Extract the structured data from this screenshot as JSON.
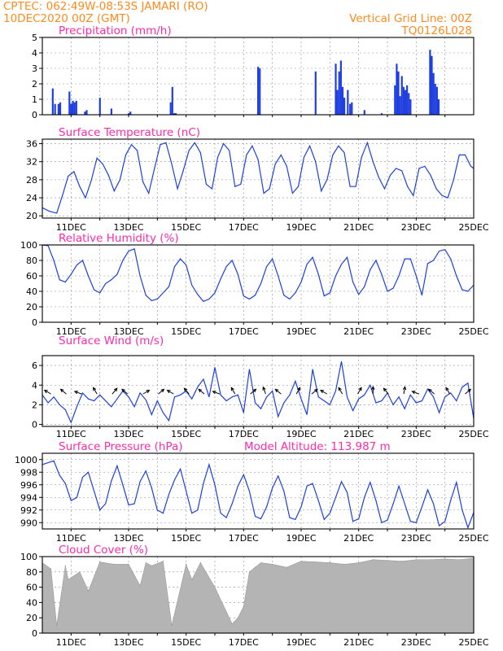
{
  "header": {
    "line1_left": "CPTEC:   062:49W-08:53S   JAMARI (RO)",
    "line2_left": "10DEC2020 00Z (GMT)",
    "line1_right": "Vertical Grid Line: 00Z",
    "line2_right": "TQ0126L028"
  },
  "x_tick_labels": [
    "11DEC",
    "13DEC",
    "15DEC",
    "17DEC",
    "19DEC",
    "21DEC",
    "23DEC",
    "25DEC"
  ],
  "colors": {
    "header": "#ff8a1e",
    "panel_title": "#ff2aa9",
    "series": "#1f3fe0",
    "cloud": "#b4b4b4"
  },
  "chart_data": [
    {
      "id": "precip",
      "type": "bar",
      "title": "Precipitation (mm/h)",
      "x_unit": "days since 10DEC2020 00Z",
      "ylim": [
        0,
        5
      ],
      "yticks": [
        0,
        1,
        2,
        3,
        4,
        5
      ],
      "x": [
        0.36,
        0.44,
        0.56,
        0.62,
        0.94,
        1.0,
        1.06,
        1.12,
        1.18,
        1.48,
        1.54,
        2.0,
        2.4,
        3.0,
        3.06,
        4.46,
        4.52,
        4.58,
        4.64,
        7.5,
        7.56,
        9.5,
        10.2,
        10.26,
        10.32,
        10.38,
        10.44,
        10.5,
        10.62,
        10.7,
        10.76,
        11.2,
        11.8,
        12.26,
        12.32,
        12.38,
        12.44,
        12.5,
        12.56,
        12.62,
        12.68,
        12.74,
        12.8,
        13.48,
        13.54,
        13.6,
        13.66,
        13.72,
        13.78
      ],
      "values": [
        1.7,
        0.7,
        0.7,
        0.8,
        1.5,
        0.7,
        0.9,
        0.8,
        0.9,
        0.2,
        0.3,
        1.1,
        0.4,
        0.1,
        0.2,
        0.8,
        1.8,
        0.1,
        0.1,
        3.1,
        3.0,
        2.8,
        3.3,
        1.6,
        2.8,
        3.5,
        1.8,
        1.1,
        1.6,
        0.7,
        0.8,
        0.3,
        0.1,
        1.9,
        3.3,
        2.8,
        1.2,
        2.5,
        1.8,
        1.6,
        1.9,
        1.4,
        1.0,
        4.2,
        3.8,
        2.7,
        2.0,
        1.8,
        1.0
      ]
    },
    {
      "id": "temp",
      "type": "line",
      "title": "Surface Temperature (nC)",
      "ylim": [
        19.5,
        37
      ],
      "yticks": [
        20,
        24,
        28,
        32,
        36
      ],
      "x": [
        0,
        0.25,
        0.5,
        0.7,
        0.9,
        1.1,
        1.3,
        1.5,
        1.7,
        1.9,
        2.1,
        2.3,
        2.5,
        2.7,
        2.9,
        3.1,
        3.3,
        3.5,
        3.7,
        3.9,
        4.1,
        4.3,
        4.5,
        4.7,
        4.9,
        5.1,
        5.3,
        5.5,
        5.7,
        5.9,
        6.1,
        6.3,
        6.5,
        6.7,
        6.9,
        7.1,
        7.3,
        7.5,
        7.7,
        7.9,
        8.1,
        8.3,
        8.5,
        8.7,
        8.9,
        9.1,
        9.3,
        9.5,
        9.7,
        9.9,
        10.1,
        10.3,
        10.5,
        10.7,
        10.9,
        11.1,
        11.3,
        11.5,
        11.7,
        11.9,
        12.1,
        12.3,
        12.5,
        12.7,
        12.9,
        13.1,
        13.3,
        13.5,
        13.7,
        13.9,
        14.1,
        14.3,
        14.5,
        14.7,
        14.9,
        15.0
      ],
      "values": [
        21.8,
        21.0,
        20.6,
        24.5,
        28.8,
        29.8,
        26.5,
        24.0,
        27.8,
        32.8,
        31.5,
        29.0,
        25.5,
        28.0,
        33.5,
        35.8,
        34.5,
        27.5,
        25.0,
        30.5,
        35.8,
        36.2,
        31.5,
        26.0,
        30.0,
        34.5,
        36.2,
        34.0,
        27.0,
        26.0,
        33.0,
        36.0,
        34.5,
        26.5,
        27.0,
        33.5,
        35.5,
        32.5,
        25.0,
        26.0,
        31.5,
        33.5,
        31.0,
        25.0,
        26.5,
        33.0,
        35.5,
        32.0,
        25.5,
        28.0,
        33.5,
        35.5,
        34.0,
        26.5,
        26.5,
        33.0,
        36.2,
        32.0,
        28.5,
        26.0,
        29.0,
        30.5,
        30.0,
        26.5,
        24.5,
        30.5,
        31.0,
        29.0,
        26.0,
        24.5,
        24.0,
        28.0,
        33.5,
        33.5,
        31.0,
        30.5
      ]
    },
    {
      "id": "rh",
      "type": "line",
      "title": "Relative Humidity (%)",
      "ylim": [
        0,
        100
      ],
      "yticks": [
        0,
        20,
        40,
        60,
        80,
        100
      ],
      "x": [
        0,
        0.2,
        0.4,
        0.6,
        0.8,
        1.0,
        1.2,
        1.4,
        1.6,
        1.8,
        2.0,
        2.2,
        2.4,
        2.6,
        2.8,
        3.0,
        3.2,
        3.4,
        3.6,
        3.8,
        4.0,
        4.2,
        4.4,
        4.6,
        4.8,
        5.0,
        5.2,
        5.4,
        5.6,
        5.8,
        6.0,
        6.2,
        6.4,
        6.6,
        6.8,
        7.0,
        7.2,
        7.4,
        7.6,
        7.8,
        8.0,
        8.2,
        8.4,
        8.6,
        8.8,
        9.0,
        9.2,
        9.4,
        9.6,
        9.8,
        10.0,
        10.2,
        10.4,
        10.6,
        10.8,
        11.0,
        11.2,
        11.4,
        11.6,
        11.8,
        12.0,
        12.2,
        12.4,
        12.6,
        12.8,
        13.0,
        13.2,
        13.4,
        13.6,
        13.8,
        14.0,
        14.2,
        14.4,
        14.6,
        14.8,
        15.0
      ],
      "values": [
        100,
        99,
        80,
        55,
        52,
        62,
        74,
        80,
        60,
        42,
        38,
        50,
        55,
        62,
        80,
        92,
        95,
        60,
        35,
        28,
        30,
        38,
        46,
        72,
        82,
        74,
        48,
        36,
        27,
        30,
        38,
        56,
        72,
        80,
        62,
        34,
        30,
        35,
        50,
        72,
        82,
        60,
        35,
        30,
        38,
        52,
        75,
        84,
        62,
        34,
        38,
        60,
        75,
        84,
        52,
        36,
        46,
        68,
        80,
        62,
        40,
        44,
        60,
        82,
        82,
        60,
        35,
        76,
        80,
        92,
        94,
        82,
        60,
        42,
        40,
        48
      ]
    },
    {
      "id": "wind",
      "type": "line",
      "title": "Surface Wind (m/s)",
      "ylim": [
        -0.2,
        7
      ],
      "yticks": [
        0,
        2,
        4,
        6
      ],
      "x": [
        0,
        0.2,
        0.4,
        0.6,
        0.8,
        1.0,
        1.2,
        1.4,
        1.6,
        1.8,
        2.0,
        2.2,
        2.4,
        2.6,
        2.8,
        3.0,
        3.2,
        3.4,
        3.6,
        3.8,
        4.0,
        4.2,
        4.4,
        4.6,
        4.8,
        5.0,
        5.2,
        5.4,
        5.6,
        5.8,
        6.0,
        6.2,
        6.4,
        6.6,
        6.8,
        7.0,
        7.2,
        7.4,
        7.6,
        7.8,
        8.0,
        8.2,
        8.4,
        8.6,
        8.8,
        9.0,
        9.2,
        9.4,
        9.6,
        9.8,
        10.0,
        10.2,
        10.4,
        10.6,
        10.8,
        11.0,
        11.2,
        11.4,
        11.6,
        11.8,
        12.0,
        12.2,
        12.4,
        12.6,
        12.8,
        13.0,
        13.2,
        13.4,
        13.6,
        13.8,
        14.0,
        14.2,
        14.4,
        14.6,
        14.8,
        15.0
      ],
      "values": [
        3.0,
        2.2,
        2.8,
        2.0,
        1.5,
        0.2,
        1.8,
        3.2,
        2.6,
        2.4,
        3.0,
        2.4,
        1.8,
        2.6,
        3.4,
        2.8,
        1.8,
        3.2,
        2.5,
        1.0,
        2.4,
        1.2,
        0.4,
        2.8,
        3.0,
        3.4,
        2.6,
        3.8,
        4.6,
        2.8,
        5.8,
        3.0,
        2.4,
        2.8,
        3.0,
        1.2,
        5.6,
        2.2,
        1.6,
        2.8,
        3.4,
        0.8,
        2.2,
        3.0,
        4.4,
        2.6,
        1.0,
        5.6,
        2.8,
        2.4,
        2.0,
        3.4,
        6.4,
        2.8,
        1.4,
        2.6,
        3.0,
        4.0,
        2.2,
        2.4,
        3.2,
        2.0,
        2.8,
        1.6,
        3.0,
        2.2,
        2.4,
        3.6,
        2.8,
        1.2,
        2.8,
        3.2,
        2.4,
        3.8,
        4.2,
        0.6
      ]
    },
    {
      "id": "pres",
      "type": "line",
      "title": "Surface Pressure (hPa)",
      "annotation": "Model Altitude: 113.987 m",
      "ylim": [
        989,
        1001
      ],
      "yticks": [
        990,
        992,
        994,
        996,
        998,
        1000
      ],
      "x": [
        0,
        0.2,
        0.4,
        0.6,
        0.8,
        1.0,
        1.2,
        1.4,
        1.6,
        1.8,
        2.0,
        2.2,
        2.4,
        2.6,
        2.8,
        3.0,
        3.2,
        3.4,
        3.6,
        3.8,
        4.0,
        4.2,
        4.4,
        4.6,
        4.8,
        5.0,
        5.2,
        5.4,
        5.6,
        5.8,
        6.0,
        6.2,
        6.4,
        6.6,
        6.8,
        7.0,
        7.2,
        7.4,
        7.6,
        7.8,
        8.0,
        8.2,
        8.4,
        8.6,
        8.8,
        9.0,
        9.2,
        9.4,
        9.6,
        9.8,
        10.0,
        10.2,
        10.4,
        10.6,
        10.8,
        11.0,
        11.2,
        11.4,
        11.6,
        11.8,
        12.0,
        12.2,
        12.4,
        12.6,
        12.8,
        13.0,
        13.2,
        13.4,
        13.6,
        13.8,
        14.0,
        14.2,
        14.4,
        14.6,
        14.8,
        15.0
      ],
      "values": [
        999.2,
        999.5,
        999.8,
        997.5,
        996.2,
        993.5,
        994.0,
        997.2,
        998.0,
        995.0,
        992.0,
        993.0,
        996.6,
        999.0,
        996.0,
        992.8,
        993.0,
        996.5,
        998.2,
        995.5,
        992.0,
        991.5,
        994.5,
        996.8,
        998.5,
        995.0,
        991.5,
        992.0,
        996.2,
        999.2,
        996.0,
        991.5,
        990.8,
        993.0,
        995.8,
        997.6,
        995.0,
        991.0,
        990.6,
        992.5,
        995.5,
        997.4,
        995.0,
        990.8,
        990.5,
        992.5,
        995.8,
        996.2,
        993.5,
        990.5,
        991.5,
        994.0,
        996.5,
        994.8,
        990.2,
        990.6,
        994.0,
        996.4,
        993.5,
        990.0,
        990.4,
        993.0,
        995.8,
        993.0,
        990.2,
        990.0,
        992.5,
        995.2,
        993.0,
        989.5,
        990.2,
        993.5,
        996.4,
        992.0,
        989.2,
        991.6
      ]
    },
    {
      "id": "cloud",
      "type": "area",
      "title": "Cloud Cover (%)",
      "ylim": [
        0,
        100
      ],
      "yticks": [
        0,
        20,
        40,
        60,
        80,
        100
      ],
      "x": [
        0,
        0.3,
        0.5,
        0.8,
        0.9,
        1.3,
        1.6,
        2.0,
        2.5,
        3.0,
        3.4,
        3.6,
        3.8,
        4.2,
        4.5,
        5.0,
        5.2,
        5.5,
        6.0,
        6.6,
        6.8,
        7.0,
        7.2,
        7.4,
        7.6,
        8.0,
        8.5,
        9.0,
        9.5,
        10.0,
        10.5,
        11.0,
        11.5,
        12.0,
        12.5,
        13.0,
        13.5,
        14.0,
        14.5,
        15.0
      ],
      "values": [
        92,
        84,
        10,
        88,
        70,
        80,
        55,
        93,
        90,
        90,
        62,
        92,
        88,
        94,
        10,
        90,
        70,
        92,
        60,
        12,
        20,
        35,
        80,
        86,
        92,
        90,
        86,
        94,
        93,
        92,
        90,
        92,
        96,
        95,
        94,
        96,
        96,
        97,
        96,
        98
      ]
    }
  ]
}
